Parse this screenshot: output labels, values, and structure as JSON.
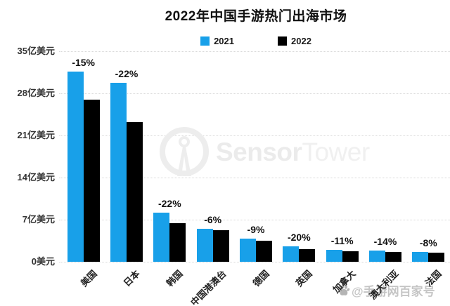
{
  "title": "2022年中国手游热门出海市场",
  "watermarks": {
    "sensor_tower": {
      "bold_part": "Sensor",
      "light_part": "Tower"
    },
    "source_badge": {
      "text": "@手游网百家号"
    }
  },
  "chart_data": {
    "type": "bar",
    "title": "2022年中国手游热门出海市场",
    "unit": "亿美元",
    "categories": [
      "美国",
      "日本",
      "韩国",
      "中国港澳台",
      "德国",
      "英国",
      "加拿大",
      "澳大利亚",
      "法国"
    ],
    "series": [
      {
        "name": "2021",
        "color": "#18a0e9",
        "values": [
          31.6,
          29.7,
          8.2,
          5.5,
          3.9,
          2.6,
          2.0,
          1.85,
          1.65
        ]
      },
      {
        "name": "2022",
        "color": "#000000",
        "values": [
          26.9,
          23.2,
          6.4,
          5.2,
          3.55,
          2.1,
          1.78,
          1.6,
          1.52
        ]
      }
    ],
    "change_labels": [
      "-15%",
      "-22%",
      "-22%",
      "-6%",
      "-9%",
      "-20%",
      "-11%",
      "-14%",
      "-8%"
    ],
    "y_ticks": [
      {
        "label": "35亿美元",
        "value": 35
      },
      {
        "label": "28亿美元",
        "value": 28
      },
      {
        "label": "21亿美元",
        "value": 21
      },
      {
        "label": "14亿美元",
        "value": 14
      },
      {
        "label": "7亿美元",
        "value": 7
      },
      {
        "label": "0美元",
        "value": 0
      }
    ],
    "ylim": [
      0,
      35
    ],
    "grid": "horizontal-dotted",
    "legend_position": "top-center",
    "x_label_rotation": -45
  }
}
